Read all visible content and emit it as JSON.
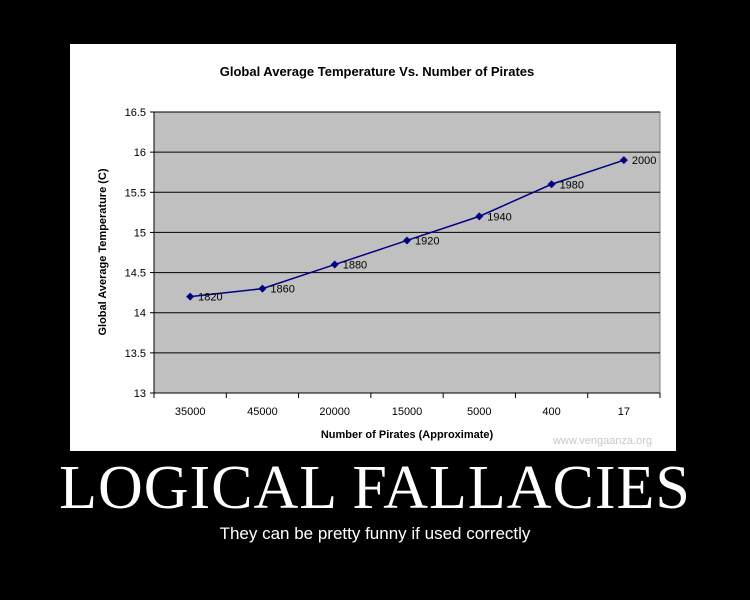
{
  "poster": {
    "title": "LOGICAL FALLACIES",
    "caption": "They can be pretty funny if used correctly",
    "watermark": "www.vengaanza.org"
  },
  "colors": {
    "background": "#000000",
    "plot_area": "#c0c0c0",
    "series": "#000080",
    "text": "#000000"
  },
  "chart_data": {
    "type": "line",
    "title": "Global Average Temperature Vs. Number of Pirates",
    "xlabel": "Number of Pirates (Approximate)",
    "ylabel": "Global Average Temperature  (C)",
    "categories": [
      "35000",
      "45000",
      "20000",
      "15000",
      "5000",
      "400",
      "17"
    ],
    "ylim": [
      13,
      16.5
    ],
    "yticks": [
      13,
      13.5,
      14,
      14.5,
      15,
      15.5,
      16,
      16.5
    ],
    "grid": true,
    "legend": "none",
    "series": [
      {
        "values": [
          14.2,
          14.3,
          14.6,
          14.9,
          15.2,
          15.6,
          15.9
        ],
        "point_labels": [
          "1820",
          "1860",
          "1880",
          "1920",
          "1940",
          "1980",
          "2000"
        ]
      }
    ]
  }
}
